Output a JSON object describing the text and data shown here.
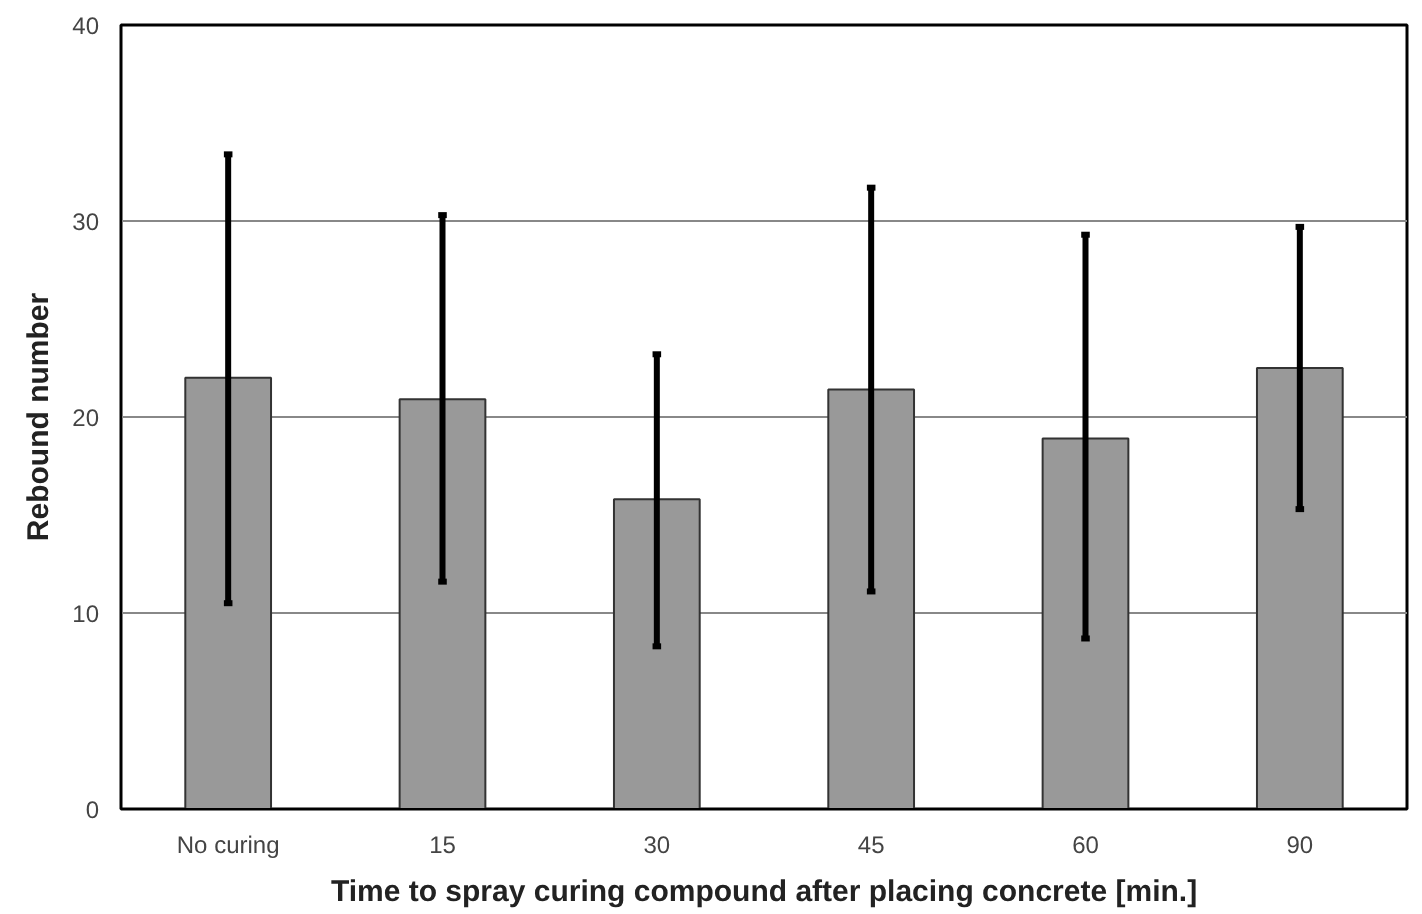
{
  "chart_data": {
    "type": "bar",
    "xlabel": "Time to spray curing compound after placing concrete [min.]",
    "ylabel": "Rebound number",
    "categories": [
      "No curing",
      "15",
      "30",
      "45",
      "60",
      "90"
    ],
    "values": [
      22.0,
      20.9,
      15.8,
      21.4,
      18.9,
      22.5
    ],
    "errors": [
      [
        10.5,
        33.4
      ],
      [
        11.6,
        30.3
      ],
      [
        8.3,
        23.2
      ],
      [
        11.1,
        31.7
      ],
      [
        8.7,
        29.3
      ],
      [
        15.3,
        29.7
      ]
    ],
    "color": "#999999",
    "ylim": [
      0,
      40
    ],
    "yticks": [
      0,
      10,
      20,
      30,
      40
    ],
    "grid": "y"
  }
}
